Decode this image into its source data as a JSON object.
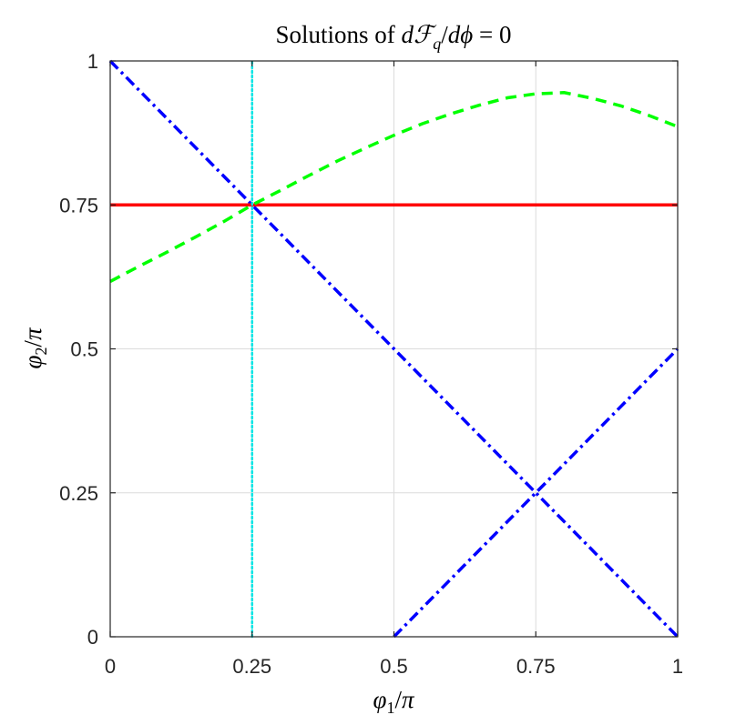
{
  "chart_data": {
    "type": "line",
    "title": "Solutions of dℱq/dϕ = 0",
    "xlabel": "φ1/π",
    "ylabel": "φ2/π",
    "xlim": [
      0,
      1
    ],
    "ylim": [
      0,
      1
    ],
    "xticks": [
      0,
      0.25,
      0.5,
      0.75,
      1
    ],
    "yticks": [
      0,
      0.25,
      0.5,
      0.75,
      1
    ],
    "xtick_labels": [
      "0",
      "0.25",
      "0.5",
      "0.75",
      "1"
    ],
    "ytick_labels": [
      "0",
      "0.25",
      "0.5",
      "0.75",
      "1"
    ],
    "grid": true,
    "series": [
      {
        "color": "#0000ff",
        "style": "dash-dot",
        "x": [
          0,
          1
        ],
        "y": [
          1,
          0
        ]
      },
      {
        "color": "#0000ff",
        "style": "dash-dot",
        "x": [
          0.5,
          1
        ],
        "y": [
          0,
          0.5
        ]
      },
      {
        "color": "#ff0000",
        "style": "solid",
        "x": [
          0,
          1
        ],
        "y": [
          0.75,
          0.75
        ]
      },
      {
        "color": "#00e5e5",
        "style": "dotted",
        "x": [
          0.25,
          0.25
        ],
        "y": [
          0,
          1
        ]
      },
      {
        "color": "#00ff00",
        "style": "dashed",
        "x": [
          0,
          0.05,
          0.1,
          0.15,
          0.2,
          0.25,
          0.3,
          0.35,
          0.4,
          0.45,
          0.5,
          0.55,
          0.6,
          0.65,
          0.7,
          0.75,
          0.8,
          0.85,
          0.9,
          0.95,
          1
        ],
        "y": [
          0.617,
          0.643,
          0.668,
          0.694,
          0.721,
          0.75,
          0.775,
          0.801,
          0.826,
          0.849,
          0.871,
          0.891,
          0.908,
          0.923,
          0.936,
          0.943,
          0.945,
          0.935,
          0.922,
          0.905,
          0.886
        ]
      }
    ]
  }
}
